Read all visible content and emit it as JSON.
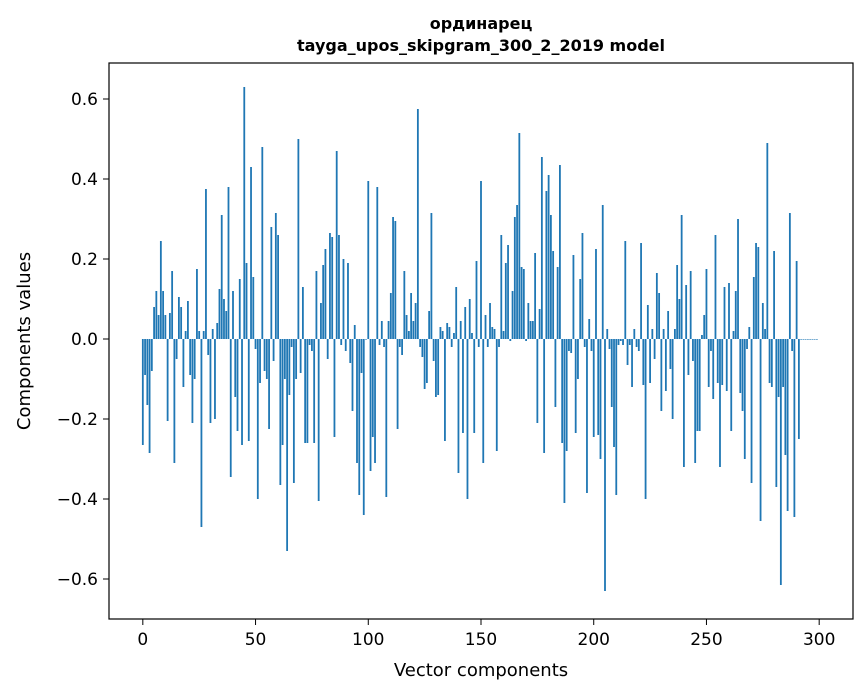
{
  "chart_data": {
    "type": "bar",
    "title": "ординарец",
    "subtitle": "tayga_upos_skipgram_300_2_2019 model",
    "xlabel": "Vector components",
    "ylabel": "Components values",
    "xlim": [
      -15,
      315
    ],
    "ylim": [
      -0.7,
      0.69
    ],
    "xticks": [
      0,
      50,
      100,
      150,
      200,
      250,
      300
    ],
    "xtick_labels": [
      "0",
      "50",
      "100",
      "150",
      "200",
      "250",
      "300"
    ],
    "yticks": [
      -0.6,
      -0.4,
      -0.2,
      0.0,
      0.2,
      0.4,
      0.6
    ],
    "ytick_labels": [
      "−0.6",
      "−0.4",
      "−0.2",
      "0.0",
      "0.2",
      "0.4",
      "0.6"
    ],
    "bar_color": "#1f77b4",
    "grid": false,
    "legend": "none",
    "x": "0..299",
    "values": [
      -0.265,
      -0.09,
      -0.165,
      -0.285,
      -0.08,
      0.08,
      0.12,
      0.06,
      0.245,
      0.12,
      0.06,
      -0.205,
      0.065,
      0.17,
      -0.31,
      -0.05,
      0.105,
      0.08,
      -0.12,
      0.02,
      0.095,
      -0.09,
      -0.21,
      -0.1,
      0.175,
      0.02,
      -0.47,
      0.02,
      0.375,
      -0.04,
      -0.21,
      0.025,
      -0.2,
      0.04,
      0.125,
      0.31,
      0.1,
      0.07,
      0.38,
      -0.345,
      0.12,
      -0.145,
      -0.23,
      0.15,
      -0.265,
      0.63,
      0.19,
      -0.255,
      0.43,
      0.155,
      -0.025,
      -0.4,
      -0.11,
      0.48,
      -0.08,
      -0.1,
      -0.225,
      0.28,
      -0.055,
      0.315,
      0.26,
      -0.365,
      -0.265,
      -0.1,
      -0.53,
      -0.14,
      -0.02,
      -0.36,
      -0.1,
      0.5,
      -0.085,
      0.13,
      -0.26,
      -0.26,
      -0.015,
      -0.03,
      -0.26,
      0.17,
      -0.405,
      0.09,
      0.185,
      0.225,
      -0.05,
      0.265,
      0.255,
      -0.245,
      0.47,
      0.26,
      -0.015,
      0.2,
      -0.03,
      0.19,
      -0.06,
      -0.18,
      0.035,
      -0.31,
      -0.39,
      -0.085,
      -0.44,
      0.0,
      0.395,
      -0.33,
      -0.245,
      -0.31,
      0.38,
      -0.015,
      0.045,
      -0.02,
      -0.395,
      0.045,
      0.115,
      0.305,
      0.295,
      -0.225,
      -0.02,
      -0.04,
      0.17,
      0.06,
      0.02,
      0.115,
      0.045,
      0.09,
      0.575,
      -0.02,
      -0.045,
      -0.125,
      -0.11,
      0.07,
      0.315,
      -0.055,
      -0.145,
      -0.14,
      0.03,
      0.02,
      -0.255,
      0.04,
      0.03,
      -0.02,
      0.015,
      0.13,
      -0.335,
      0.045,
      -0.235,
      0.08,
      -0.4,
      0.1,
      0.015,
      -0.235,
      0.195,
      -0.02,
      0.395,
      -0.31,
      0.06,
      -0.02,
      0.09,
      0.03,
      0.025,
      -0.28,
      -0.02,
      0.26,
      0.02,
      0.19,
      0.235,
      -0.005,
      0.12,
      0.305,
      0.335,
      0.515,
      0.18,
      0.175,
      -0.005,
      0.09,
      0.045,
      0.045,
      0.215,
      -0.21,
      0.075,
      0.455,
      -0.285,
      0.37,
      0.41,
      0.31,
      0.22,
      -0.17,
      0.18,
      0.435,
      -0.26,
      -0.41,
      -0.28,
      -0.03,
      -0.035,
      0.21,
      -0.235,
      -0.1,
      0.15,
      0.265,
      -0.02,
      -0.385,
      0.05,
      -0.03,
      -0.245,
      0.225,
      -0.24,
      -0.3,
      0.335,
      -0.63,
      0.025,
      -0.025,
      -0.17,
      -0.27,
      -0.39,
      -0.015,
      -0.005,
      -0.015,
      0.245,
      -0.065,
      -0.015,
      -0.12,
      0.025,
      -0.02,
      -0.03,
      0.24,
      -0.115,
      -0.4,
      0.085,
      -0.11,
      0.025,
      -0.05,
      0.165,
      0.115,
      -0.18,
      0.025,
      -0.13,
      0.07,
      -0.075,
      -0.2,
      0.025,
      0.185,
      0.1,
      0.31,
      -0.32,
      0.135,
      -0.09,
      0.17,
      -0.055,
      -0.31,
      -0.23,
      -0.23,
      0.01,
      0.06,
      0.175,
      -0.12,
      -0.03,
      -0.15,
      0.26,
      -0.11,
      -0.32,
      -0.115,
      0.13,
      -0.13,
      0.14,
      -0.23,
      0.02,
      0.12,
      0.3,
      -0.135,
      -0.18,
      -0.3,
      -0.025,
      0.03,
      -0.36,
      0.155,
      0.24,
      0.23,
      -0.455,
      0.09,
      0.025,
      0.49,
      -0.11,
      -0.12,
      0.22,
      -0.37,
      -0.145,
      -0.615,
      -0.12,
      -0.29,
      -0.43,
      0.315,
      -0.03,
      -0.445,
      0.195,
      -0.25,
      0.0,
      0.0,
      0.0,
      0.0,
      0.0,
      0.0,
      0.0,
      0.0
    ]
  }
}
